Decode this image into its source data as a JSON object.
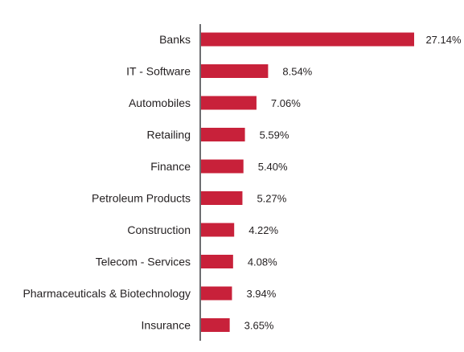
{
  "chart_data": {
    "type": "bar",
    "orientation": "horizontal",
    "categories": [
      "Banks",
      "IT - Software",
      "Automobiles",
      "Retailing",
      "Finance",
      "Petroleum Products",
      "Construction",
      "Telecom - Services",
      "Pharmaceuticals & Biotechnology",
      "Insurance"
    ],
    "values": [
      27.14,
      8.54,
      7.06,
      5.59,
      5.4,
      5.27,
      4.22,
      4.08,
      3.94,
      3.65
    ],
    "value_labels": [
      "27.14%",
      "8.54%",
      "7.06%",
      "5.59%",
      "5.40%",
      "5.27%",
      "4.22%",
      "4.08%",
      "3.94%",
      "3.65%"
    ],
    "title": "",
    "xlabel": "",
    "ylabel": "",
    "xlim": [
      0,
      27.14
    ],
    "grid": false,
    "legend": "none",
    "bar_color": "#c8213a",
    "axis_color": "#6d6e71",
    "text_color": "#231f20"
  }
}
